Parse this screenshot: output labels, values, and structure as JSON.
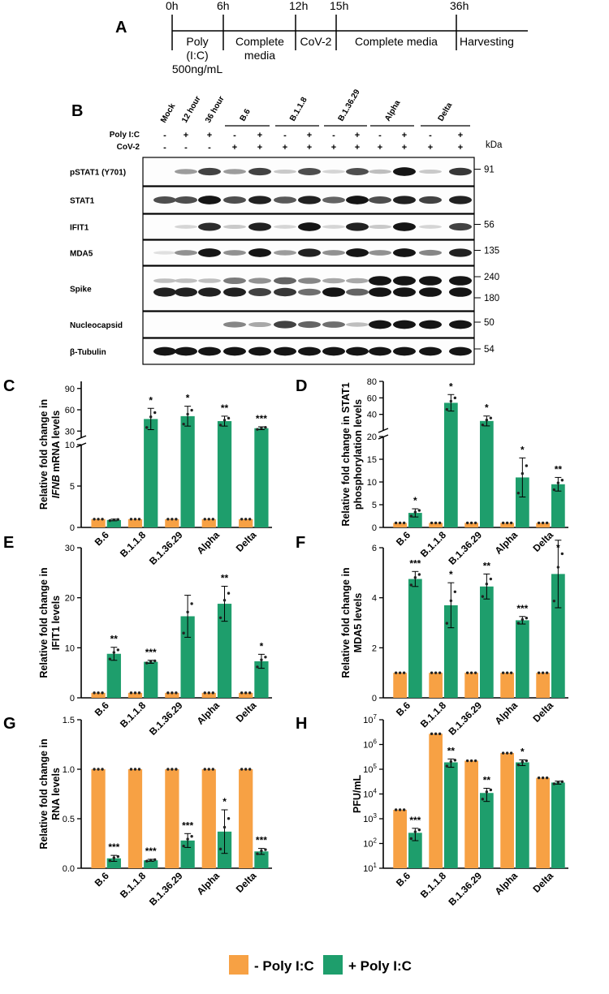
{
  "colors": {
    "minus": "#F7A144",
    "plus": "#1E9E6C"
  },
  "panel_labels": [
    "A",
    "B",
    "C",
    "D",
    "E",
    "F",
    "G",
    "H"
  ],
  "timeline": {
    "times": [
      "0h",
      "6h",
      "12h",
      "15h",
      "36h"
    ],
    "segments": [
      {
        "lines": [
          "Poly",
          "(I:C)",
          "500ng/mL"
        ]
      },
      {
        "lines": [
          "Complete",
          "media"
        ]
      },
      {
        "lines": [
          "CoV-2"
        ]
      },
      {
        "lines": [
          "Complete media"
        ]
      }
    ],
    "end_label": "Harvesting"
  },
  "blot": {
    "lane_labels": [
      "Mock",
      "12 hour",
      "36 hour"
    ],
    "group_labels": [
      "B.6",
      "B.1.1.8",
      "B.1.36.29",
      "Alpha",
      "Delta"
    ],
    "row_labels": [
      "Poly I:C",
      "CoV-2"
    ],
    "polyic": [
      "-",
      "+",
      "+",
      "-",
      "+",
      "-",
      "+",
      "-",
      "+",
      "-",
      "+",
      "-",
      "+"
    ],
    "cov2": [
      "-",
      "-",
      "-",
      "+",
      "+",
      "+",
      "+",
      "+",
      "+",
      "+",
      "+",
      "+",
      "+"
    ],
    "kda_header": "kDa",
    "strips": [
      {
        "name": "pSTAT1 (Y701)",
        "kda": [
          "91"
        ]
      },
      {
        "name": "STAT1",
        "kda": []
      },
      {
        "name": "IFIT1",
        "kda": [
          "56"
        ]
      },
      {
        "name": "MDA5",
        "kda": [
          "135"
        ]
      },
      {
        "name": "Spike",
        "kda": [
          "240",
          "180"
        ]
      },
      {
        "name": "Nucleocapsid",
        "kda": [
          "50"
        ]
      },
      {
        "name": "β-Tubulin",
        "kda": [
          "54"
        ]
      }
    ]
  },
  "legend": {
    "minus_label": "- Poly I:C",
    "plus_label": "+ Poly I:C"
  },
  "chart_data": [
    {
      "panel": "C",
      "type": "bar",
      "scale": "broken",
      "categories": [
        "B.6",
        "B.1.1.8",
        "B.1.36.29",
        "Alpha",
        "Delta"
      ],
      "ylabel_lines": [
        "Relative fold change in",
        "IFNB mRNA levels"
      ],
      "ylabel_italic_word": "IFNB",
      "lower_ylim": [
        0,
        10
      ],
      "lower_ticks": [
        0,
        5,
        10
      ],
      "upper_ylim": [
        20,
        100
      ],
      "upper_ticks": [
        30,
        60,
        90
      ],
      "series": [
        {
          "name": "- Poly I:C",
          "values": [
            1,
            1,
            1,
            1,
            1
          ],
          "errors": [
            0,
            0,
            0,
            0,
            0
          ]
        },
        {
          "name": "+ Poly I:C",
          "values": [
            0.9,
            47,
            51,
            44,
            34
          ],
          "errors": [
            0.1,
            15,
            14,
            7,
            2
          ]
        }
      ],
      "significance": [
        "",
        "*",
        "*",
        "**",
        "***"
      ]
    },
    {
      "panel": "D",
      "type": "bar",
      "scale": "broken",
      "categories": [
        "B.6",
        "B.1.1.8",
        "B.1.36.29",
        "Alpha",
        "Delta"
      ],
      "ylabel_lines": [
        "Relative fold change in STAT1",
        "phosphorylation levels"
      ],
      "lower_ylim": [
        0,
        20
      ],
      "lower_ticks": [
        0,
        5,
        10,
        15,
        20
      ],
      "upper_ylim": [
        20,
        80
      ],
      "upper_ticks": [
        40,
        60,
        80
      ],
      "series": [
        {
          "name": "- Poly I:C",
          "values": [
            1,
            1,
            1,
            1,
            1
          ],
          "errors": [
            0,
            0,
            0,
            0,
            0
          ]
        },
        {
          "name": "+ Poly I:C",
          "values": [
            3.2,
            54,
            32,
            11,
            9.5
          ],
          "errors": [
            0.9,
            10,
            6,
            4.3,
            1.5
          ]
        }
      ],
      "significance": [
        "*",
        "*",
        "*",
        "*",
        "**"
      ]
    },
    {
      "panel": "E",
      "type": "bar",
      "scale": "linear",
      "categories": [
        "B.6",
        "B.1.1.8",
        "B.1.36.29",
        "Alpha",
        "Delta"
      ],
      "ylabel_lines": [
        "Relative fold change in",
        "IFIT1 levels"
      ],
      "ylim": [
        0,
        30
      ],
      "ticks": [
        0,
        10,
        20,
        30
      ],
      "series": [
        {
          "name": "- Poly I:C",
          "values": [
            1,
            1,
            1,
            1,
            1
          ],
          "errors": [
            0,
            0,
            0,
            0,
            0
          ]
        },
        {
          "name": "+ Poly I:C",
          "values": [
            8.8,
            7.2,
            16.3,
            18.8,
            7.3
          ],
          "errors": [
            1.3,
            0.3,
            4.2,
            3.5,
            1.4
          ]
        }
      ],
      "significance": [
        "**",
        "***",
        "",
        "**",
        "*"
      ]
    },
    {
      "panel": "F",
      "type": "bar",
      "scale": "linear",
      "categories": [
        "B.6",
        "B.1.1.8",
        "B.1.36.29",
        "Alpha",
        "Delta"
      ],
      "ylabel_lines": [
        "Relative fold change in",
        "MDA5 levels"
      ],
      "ylim": [
        0,
        6
      ],
      "ticks": [
        0,
        2,
        4,
        6
      ],
      "series": [
        {
          "name": "- Poly I:C",
          "values": [
            1,
            1,
            1,
            1,
            1
          ],
          "errors": [
            0,
            0,
            0,
            0,
            0
          ]
        },
        {
          "name": "+ Poly I:C",
          "values": [
            4.75,
            3.7,
            4.45,
            3.1,
            4.95
          ],
          "errors": [
            0.3,
            0.9,
            0.5,
            0.15,
            1.35
          ]
        }
      ],
      "significance": [
        "***",
        "*",
        "**",
        "***",
        "*"
      ]
    },
    {
      "panel": "G",
      "type": "bar",
      "scale": "linear",
      "categories": [
        "B.6",
        "B.1.1.8",
        "B.1.36.29",
        "Alpha",
        "Delta"
      ],
      "ylabel_lines": [
        "Relative fold change in",
        "RNA levels"
      ],
      "ylim": [
        0,
        1.5
      ],
      "ticks": [
        0.0,
        0.5,
        1.0,
        1.5
      ],
      "tick_labels": [
        "0.0",
        "0.5",
        "1.0",
        "1.5"
      ],
      "series": [
        {
          "name": "- Poly I:C",
          "values": [
            1,
            1,
            1,
            1,
            1
          ],
          "errors": [
            0,
            0,
            0,
            0,
            0
          ]
        },
        {
          "name": "+ Poly I:C",
          "values": [
            0.1,
            0.08,
            0.28,
            0.37,
            0.17
          ],
          "errors": [
            0.03,
            0.01,
            0.07,
            0.22,
            0.03
          ]
        }
      ],
      "significance": [
        "***",
        "***",
        "***",
        "*",
        "***"
      ]
    },
    {
      "panel": "H",
      "type": "bar",
      "scale": "log",
      "categories": [
        "B.6",
        "B.1.1.8",
        "B.1.36.29",
        "Alpha",
        "Delta"
      ],
      "ylabel_lines": [
        "PFU/mL"
      ],
      "ylim": [
        10,
        10000000
      ],
      "tick_exponents": [
        1,
        2,
        3,
        4,
        5,
        6,
        7
      ],
      "series": [
        {
          "name": "- Poly I:C",
          "values": [
            2300,
            2700000,
            220000,
            450000,
            45000
          ],
          "errors": [
            0,
            0,
            0,
            0,
            0
          ]
        },
        {
          "name": "+ Poly I:C",
          "values": [
            270,
            190000,
            11000,
            190000,
            29000
          ],
          "errors": [
            140,
            70000,
            6000,
            50000,
            4000
          ]
        }
      ],
      "significance": [
        "***",
        "**",
        "**",
        "*",
        ""
      ]
    }
  ]
}
